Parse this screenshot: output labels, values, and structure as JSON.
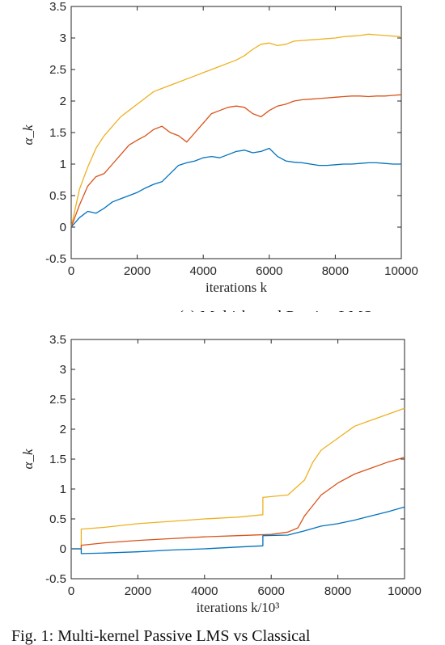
{
  "chart_data": [
    {
      "type": "line",
      "xlabel": "iterations k",
      "ylabel": "α_k",
      "xlim": [
        0,
        10000
      ],
      "ylim": [
        -0.5,
        3.5
      ],
      "xticks": [
        "0",
        "2000",
        "4000",
        "6000",
        "8000",
        "10000"
      ],
      "yticks": [
        "-0.5",
        "0",
        "0.5",
        "1",
        "1.5",
        "2",
        "2.5",
        "3",
        "3.5"
      ],
      "grid": false,
      "caption": "(a) Multi-kernel Passive LMS",
      "series": [
        {
          "color": "#EDB120",
          "x": [
            0,
            250,
            500,
            750,
            1000,
            1250,
            1500,
            1750,
            2000,
            2250,
            2500,
            2750,
            3000,
            3250,
            3500,
            3750,
            4000,
            4250,
            4500,
            4750,
            5000,
            5250,
            5500,
            5750,
            6000,
            6250,
            6500,
            6750,
            7000,
            7250,
            7500,
            7750,
            8000,
            8250,
            8500,
            8750,
            9000,
            9250,
            9500,
            9750,
            10000
          ],
          "y": [
            0,
            0.6,
            0.95,
            1.25,
            1.45,
            1.6,
            1.75,
            1.85,
            1.95,
            2.05,
            2.15,
            2.2,
            2.25,
            2.3,
            2.35,
            2.4,
            2.45,
            2.5,
            2.55,
            2.6,
            2.65,
            2.72,
            2.82,
            2.9,
            2.92,
            2.88,
            2.9,
            2.95,
            2.96,
            2.97,
            2.98,
            2.99,
            3.0,
            3.02,
            3.03,
            3.04,
            3.06,
            3.05,
            3.04,
            3.03,
            3.02
          ]
        },
        {
          "color": "#D95319",
          "x": [
            0,
            250,
            500,
            750,
            1000,
            1250,
            1500,
            1750,
            2000,
            2250,
            2500,
            2750,
            3000,
            3250,
            3500,
            3750,
            4000,
            4250,
            4500,
            4750,
            5000,
            5250,
            5500,
            5750,
            6000,
            6250,
            6500,
            6750,
            7000,
            7250,
            7500,
            7750,
            8000,
            8250,
            8500,
            8750,
            9000,
            9250,
            9500,
            9750,
            10000
          ],
          "y": [
            0,
            0.35,
            0.65,
            0.8,
            0.85,
            1.0,
            1.15,
            1.3,
            1.38,
            1.45,
            1.55,
            1.6,
            1.5,
            1.45,
            1.35,
            1.5,
            1.65,
            1.8,
            1.85,
            1.9,
            1.92,
            1.9,
            1.8,
            1.75,
            1.85,
            1.92,
            1.95,
            2.0,
            2.02,
            2.03,
            2.04,
            2.05,
            2.06,
            2.07,
            2.08,
            2.08,
            2.07,
            2.08,
            2.08,
            2.09,
            2.1
          ]
        },
        {
          "color": "#0072BD",
          "x": [
            0,
            250,
            500,
            750,
            1000,
            1250,
            1500,
            1750,
            2000,
            2250,
            2500,
            2750,
            3000,
            3250,
            3500,
            3750,
            4000,
            4250,
            4500,
            4750,
            5000,
            5250,
            5500,
            5750,
            6000,
            6250,
            6500,
            6750,
            7000,
            7250,
            7500,
            7750,
            8000,
            8250,
            8500,
            8750,
            9000,
            9250,
            9500,
            9750,
            10000
          ],
          "y": [
            0,
            0.15,
            0.25,
            0.22,
            0.3,
            0.4,
            0.45,
            0.5,
            0.55,
            0.62,
            0.68,
            0.72,
            0.85,
            0.98,
            1.02,
            1.05,
            1.1,
            1.12,
            1.1,
            1.15,
            1.2,
            1.22,
            1.18,
            1.2,
            1.25,
            1.12,
            1.05,
            1.03,
            1.02,
            1.0,
            0.98,
            0.98,
            0.99,
            1.0,
            1.0,
            1.01,
            1.02,
            1.02,
            1.01,
            1.0,
            1.0
          ]
        }
      ]
    },
    {
      "type": "line",
      "xlabel": "iterations k/10³",
      "ylabel": "α_k",
      "xlim": [
        0,
        10000
      ],
      "ylim": [
        -0.5,
        3.5
      ],
      "xticks": [
        "0",
        "2000",
        "4000",
        "6000",
        "8000",
        "10000"
      ],
      "yticks": [
        "-0.5",
        "0",
        "0.5",
        "1",
        "1.5",
        "2",
        "2.5",
        "3",
        "3.5"
      ],
      "grid": false,
      "caption": "Fig. 1: Multi-kernel Passive LMS vs Classical",
      "series": [
        {
          "color": "#EDB120",
          "x": [
            0,
            300,
            300,
            1000,
            2000,
            3000,
            4000,
            5000,
            5750,
            5750,
            6500,
            7000,
            7250,
            7500,
            8000,
            8500,
            9000,
            9500,
            10000
          ],
          "y": [
            0,
            0,
            0.33,
            0.36,
            0.42,
            0.46,
            0.5,
            0.53,
            0.57,
            0.86,
            0.9,
            1.15,
            1.45,
            1.65,
            1.85,
            2.05,
            2.15,
            2.25,
            2.35
          ]
        },
        {
          "color": "#D95319",
          "x": [
            0,
            300,
            300,
            1000,
            2000,
            3000,
            4000,
            5000,
            6000,
            6500,
            6800,
            7000,
            7500,
            8000,
            8500,
            9000,
            9500,
            10000
          ],
          "y": [
            0,
            0,
            0.06,
            0.1,
            0.14,
            0.17,
            0.2,
            0.22,
            0.24,
            0.28,
            0.35,
            0.55,
            0.9,
            1.1,
            1.25,
            1.35,
            1.45,
            1.53
          ]
        },
        {
          "color": "#0072BD",
          "x": [
            0,
            300,
            300,
            1000,
            2000,
            3000,
            4000,
            5000,
            5750,
            5750,
            6500,
            7000,
            7500,
            8000,
            8500,
            9000,
            9500,
            10000
          ],
          "y": [
            0,
            0,
            -0.08,
            -0.07,
            -0.05,
            -0.02,
            0.0,
            0.03,
            0.05,
            0.22,
            0.23,
            0.3,
            0.38,
            0.42,
            0.48,
            0.55,
            0.62,
            0.7
          ]
        }
      ]
    }
  ]
}
